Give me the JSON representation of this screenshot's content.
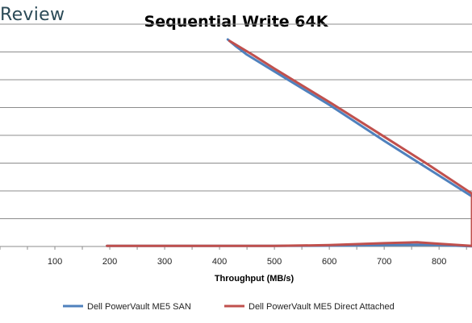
{
  "brand": "Review",
  "chart_data": {
    "type": "line",
    "title": "Sequential Write 64K",
    "xlabel": "Throughput (MB/s)",
    "ylabel": "",
    "xlim": [
      0,
      860
    ],
    "ylim": [
      0,
      8
    ],
    "x_ticks": [
      100,
      200,
      300,
      400,
      500,
      600,
      700,
      800
    ],
    "grid": true,
    "legend": "bottom",
    "series": [
      {
        "name": "Dell PowerVault ME5 SAN",
        "color": "#4f81bd",
        "points": [
          [
            195,
            0.02
          ],
          [
            300,
            0.02
          ],
          [
            400,
            0.02
          ],
          [
            500,
            0.02
          ],
          [
            600,
            0.03
          ],
          [
            700,
            0.05
          ],
          [
            760,
            0.06
          ],
          [
            800,
            0.05
          ],
          [
            860,
            0.01
          ],
          [
            860,
            1.8
          ],
          [
            780,
            2.8
          ],
          [
            700,
            3.8
          ],
          [
            600,
            5.1
          ],
          [
            500,
            6.3
          ],
          [
            450,
            6.9
          ],
          [
            430,
            7.2
          ],
          [
            415,
            7.45
          ]
        ]
      },
      {
        "name": "Dell PowerVault ME5 Direct Attached",
        "color": "#c0504d",
        "points": [
          [
            195,
            0.02
          ],
          [
            300,
            0.02
          ],
          [
            400,
            0.02
          ],
          [
            500,
            0.02
          ],
          [
            600,
            0.05
          ],
          [
            700,
            0.12
          ],
          [
            760,
            0.15
          ],
          [
            800,
            0.1
          ],
          [
            860,
            0.02
          ],
          [
            860,
            1.9
          ],
          [
            780,
            2.95
          ],
          [
            700,
            3.95
          ],
          [
            600,
            5.2
          ],
          [
            500,
            6.4
          ],
          [
            460,
            6.9
          ],
          [
            435,
            7.2
          ],
          [
            418,
            7.4
          ]
        ]
      }
    ]
  }
}
